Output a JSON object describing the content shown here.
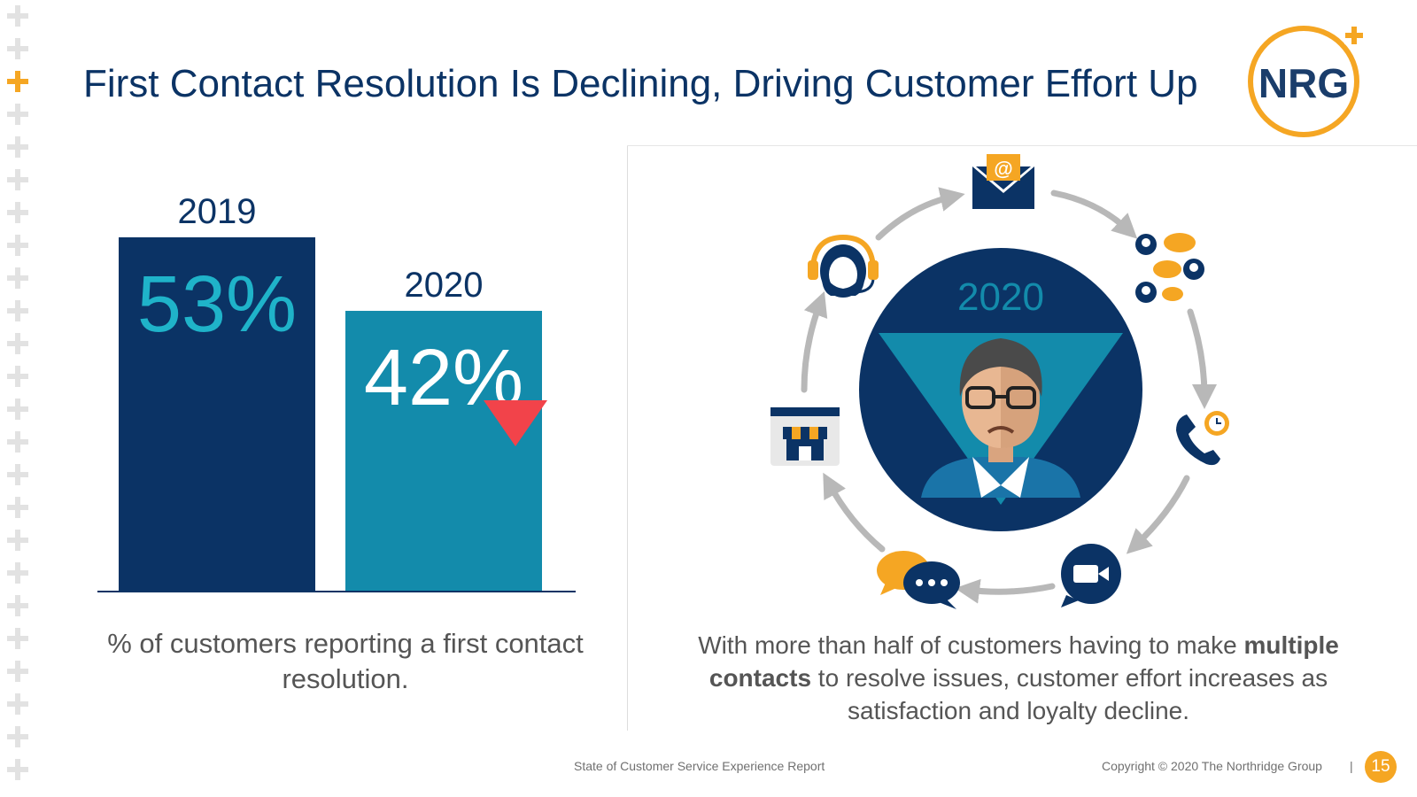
{
  "slide": {
    "title": "First Contact Resolution Is Declining, Driving Customer Effort Up",
    "logo_text": "NRG",
    "left_caption": "% of customers reporting a first contact resolution.",
    "right_caption": {
      "part1": "With more than half of customers having to make ",
      "bold": "multiple contacts",
      "part2": " to resolve issues, customer effort increases as satisfaction and loyalty decline."
    },
    "cycle_center_year": "2020",
    "footer_report": "State of Customer Service Experience Report",
    "footer_copyright": "Copyright © 2020 The Northridge Group",
    "footer_separator": "|",
    "page_number": "15"
  },
  "colors": {
    "navy": "#0b3365",
    "teal": "#138bab",
    "value_teal": "#1fb3c9",
    "orange": "#f5a623",
    "red": "#f2434a"
  },
  "icons": [
    "email-icon",
    "chat-people-icon",
    "phone-icon",
    "video-call-icon",
    "chat-bubbles-icon",
    "store-icon",
    "headset-agent-icon",
    "frustrated-customer-icon",
    "down-triangle-icon"
  ],
  "chart_data": {
    "type": "bar",
    "title": "",
    "xlabel": "",
    "ylabel": "% of customers reporting a first contact resolution",
    "categories": [
      "2019",
      "2020"
    ],
    "values": [
      53,
      42
    ],
    "value_labels": [
      "53%",
      "42%"
    ],
    "ylim": [
      0,
      53
    ],
    "grid": false,
    "legend": "none"
  }
}
